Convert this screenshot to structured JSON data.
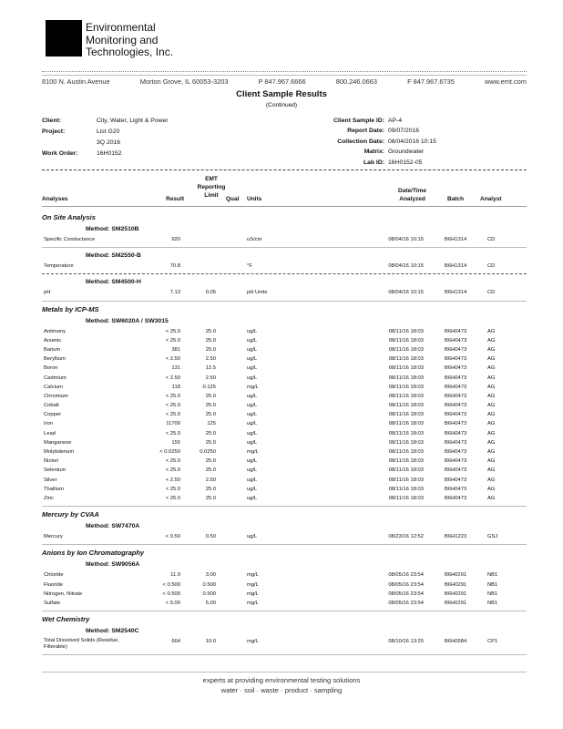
{
  "company": {
    "line1": "Environmental",
    "line2": "Monitoring and",
    "line3": "Technologies, Inc."
  },
  "address": {
    "street": "8100 N. Austin Avenue",
    "city": "Morton Grove, IL 60053-3203",
    "phone": "P 847.967.6666",
    "tollfree": "800.246.0663",
    "fax": "F 847.967.6735",
    "web": "www.emt.com"
  },
  "title": "Client Sample Results",
  "subtitle": "(Continued)",
  "info": {
    "client_label": "Client:",
    "client": "City, Water, Light & Power",
    "project_label": "Project:",
    "project": "List G20",
    "project2": "3Q 2016",
    "work_order_label": "Work Order:",
    "work_order": "16H0152",
    "sample_id_label": "Client Sample ID:",
    "sample_id": "AP-4",
    "report_date_label": "Report Date:",
    "report_date": "09/07/2016",
    "collection_label": "Collection Date:",
    "collection": "08/04/2016 10:15",
    "matrix_label": "Matrix:",
    "matrix": "Groundwater",
    "lab_id_label": "Lab ID:",
    "lab_id": "16H0152-05"
  },
  "columns": {
    "analyses": "Analyses",
    "result": "Result",
    "emt": "EMT",
    "reporting": "Reporting",
    "limit": "Limit",
    "qual": "Qual",
    "units": "Units",
    "datetime": "Date/Time",
    "analyzed": "Analyzed",
    "batch": "Batch",
    "analyst": "Analyst"
  },
  "sections": [
    {
      "title": "On Site Analysis",
      "groups": [
        {
          "method": "Method:  SM2510B",
          "rows": [
            [
              "Specific Conductance",
              "920",
              "",
              "",
              "uS/cm",
              "08/04/16 10:15",
              "B6H1314",
              "CD"
            ]
          ]
        },
        {
          "method": "Method:  SM2550-B",
          "rows": [
            [
              "Temperature",
              "70.8",
              "",
              "",
              "°F",
              "08/04/16 10:15",
              "B6H1314",
              "CD"
            ]
          ]
        },
        {
          "method": "Method:  SM4500-H",
          "rows": [
            [
              "pH",
              "7.13",
              "0.05",
              "",
              "pH Units",
              "08/04/16 10:15",
              "B6H1314",
              "CD"
            ]
          ]
        }
      ]
    },
    {
      "title": "Metals by ICP-MS",
      "groups": [
        {
          "method": "Method:  SW6020A / SW3015",
          "rows": [
            [
              "Antimony",
              "< 25.0",
              "25.0",
              "",
              "ug/L",
              "08/11/16 18:03",
              "B6H0473",
              "AG"
            ],
            [
              "Arsenic",
              "< 25.0",
              "25.0",
              "",
              "ug/L",
              "08/11/16 18:03",
              "B6H0473",
              "AG"
            ],
            [
              "Barium",
              "381",
              "25.0",
              "",
              "ug/L",
              "08/11/16 18:03",
              "B6H0473",
              "AG"
            ],
            [
              "Beryllium",
              "< 2.50",
              "2.50",
              "",
              "ug/L",
              "08/11/16 18:03",
              "B6H0473",
              "AG"
            ],
            [
              "Boron",
              "131",
              "12.5",
              "",
              "ug/L",
              "08/11/16 18:03",
              "B6H0473",
              "AG"
            ],
            [
              "Cadmium",
              "< 2.50",
              "2.50",
              "",
              "ug/L",
              "08/11/16 18:03",
              "B6H0473",
              "AG"
            ],
            [
              "Calcium",
              "118",
              "0.125",
              "",
              "mg/L",
              "08/11/16 18:03",
              "B6H0473",
              "AG"
            ],
            [
              "Chromium",
              "< 25.0",
              "25.0",
              "",
              "ug/L",
              "08/11/16 18:03",
              "B6H0473",
              "AG"
            ],
            [
              "Cobalt",
              "< 25.0",
              "25.0",
              "",
              "ug/L",
              "08/11/16 18:03",
              "B6H0473",
              "AG"
            ],
            [
              "Copper",
              "< 25.0",
              "25.0",
              "",
              "ug/L",
              "08/11/16 18:03",
              "B6H0473",
              "AG"
            ],
            [
              "Iron",
              "11700",
              "125",
              "",
              "ug/L",
              "08/11/16 18:03",
              "B6H0473",
              "AG"
            ],
            [
              "Lead",
              "< 25.0",
              "25.0",
              "",
              "ug/L",
              "08/11/16 18:03",
              "B6H0473",
              "AG"
            ],
            [
              "Manganese",
              "155",
              "25.0",
              "",
              "ug/L",
              "08/11/16 18:03",
              "B6H0473",
              "AG"
            ],
            [
              "Molybdenum",
              "< 0.0250",
              "0.0250",
              "",
              "mg/L",
              "08/11/16 18:03",
              "B6H0473",
              "AG"
            ],
            [
              "Nickel",
              "< 25.0",
              "25.0",
              "",
              "ug/L",
              "08/11/16 18:03",
              "B6H0473",
              "AG"
            ],
            [
              "Selenium",
              "< 25.0",
              "25.0",
              "",
              "ug/L",
              "08/11/16 18:03",
              "B6H0473",
              "AG"
            ],
            [
              "Silver",
              "< 2.50",
              "2.50",
              "",
              "ug/L",
              "08/11/16 18:03",
              "B6H0473",
              "AG"
            ],
            [
              "Thallium",
              "< 25.0",
              "25.0",
              "",
              "ug/L",
              "08/11/16 18:03",
              "B6H0473",
              "AG"
            ],
            [
              "Zinc",
              "< 25.0",
              "25.0",
              "",
              "ug/L",
              "08/11/16 18:03",
              "B6H0473",
              "AG"
            ]
          ]
        }
      ]
    },
    {
      "title": "Mercury by CVAA",
      "groups": [
        {
          "method": "Method:  SW7470A",
          "rows": [
            [
              "Mercury",
              "< 0.50",
              "0.50",
              "",
              "ug/L",
              "08/23/16 12:52",
              "B6H1223",
              "GSJ"
            ]
          ]
        }
      ]
    },
    {
      "title": "Anions by Ion Chromatography",
      "groups": [
        {
          "method": "Method:  SW9056A",
          "rows": [
            [
              "Chloride",
              "11.9",
              "3.00",
              "",
              "mg/L",
              "08/05/16 23:54",
              "B6H0291",
              "NB1"
            ],
            [
              "Fluoride",
              "< 0.500",
              "0.500",
              "",
              "mg/L",
              "08/05/16 23:54",
              "B6H0291",
              "NB1"
            ],
            [
              "Nitrogen, Nitrate",
              "< 0.500",
              "0.500",
              "",
              "mg/L",
              "08/05/16 23:54",
              "B6H0291",
              "NB1"
            ],
            [
              "Sulfate",
              "< 5.00",
              "5.00",
              "",
              "mg/L",
              "08/05/16 23:54",
              "B6H0291",
              "NB1"
            ]
          ]
        }
      ]
    },
    {
      "title": "Wet Chemistry",
      "groups": [
        {
          "method": "Method:  SM2540C",
          "rows": [
            [
              "Total Dissolved Solids (Residue, Filterable)",
              "664",
              "10.0",
              "",
              "mg/L",
              "08/10/16 13:25",
              "B6H0584",
              "CP1"
            ]
          ]
        }
      ]
    }
  ],
  "footer": {
    "tagline": "experts at providing environmental testing solutions",
    "services": "water  ·  soil  ·  waste  ·  product  ·  sampling"
  }
}
